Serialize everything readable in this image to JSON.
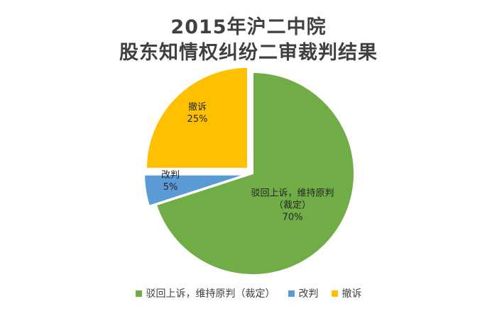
{
  "chart_data": {
    "type": "pie",
    "title": [
      "2015年沪二中院",
      "股东知情权纠纷二审裁判结果"
    ],
    "slices": [
      {
        "label": "驳回上诉，维持原判（裁定）",
        "chart_label_lines": [
          "驳回上诉，维持原判",
          "（裁定）"
        ],
        "value": 70,
        "value_label": "70%",
        "color": "#70ad47"
      },
      {
        "label": "改判",
        "chart_label_lines": [
          "改判"
        ],
        "value": 5,
        "value_label": "5%",
        "color": "#5b9bd5"
      },
      {
        "label": "撤诉",
        "chart_label_lines": [
          "撤诉"
        ],
        "value": 25,
        "value_label": "25%",
        "color": "#ffc000"
      }
    ],
    "legend_position": "bottom"
  }
}
